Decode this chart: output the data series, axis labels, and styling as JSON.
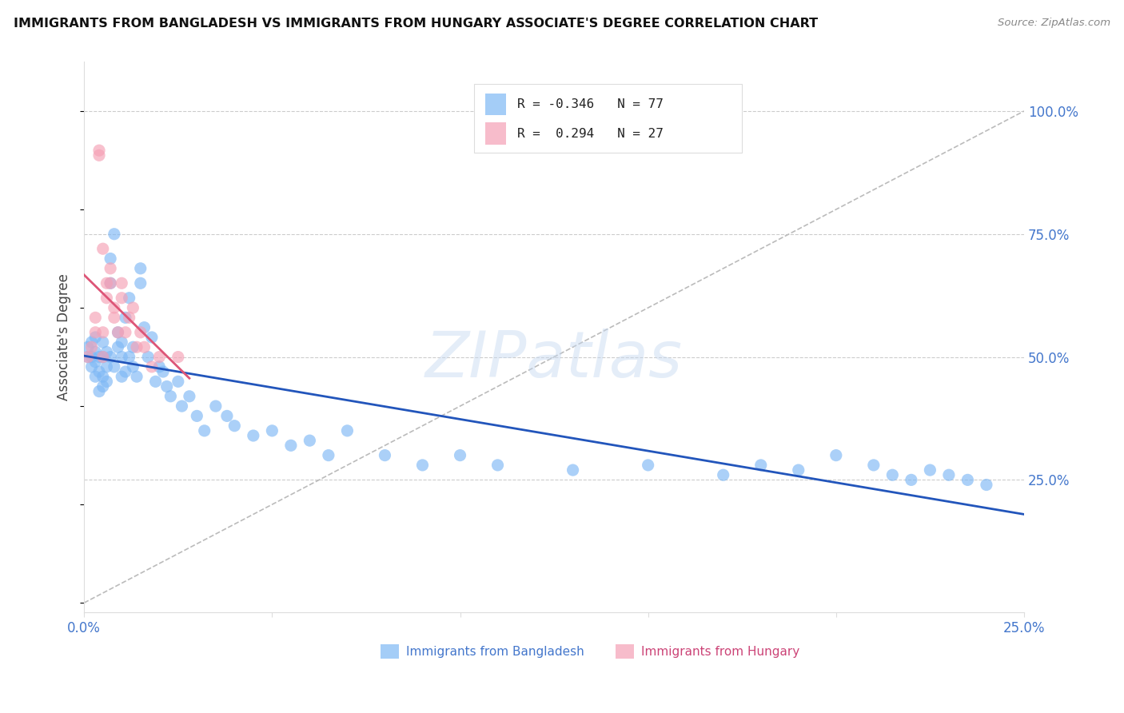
{
  "title": "IMMIGRANTS FROM BANGLADESH VS IMMIGRANTS FROM HUNGARY ASSOCIATE'S DEGREE CORRELATION CHART",
  "source": "Source: ZipAtlas.com",
  "ylabel_left": "Associate's Degree",
  "xlim": [
    0.0,
    0.25
  ],
  "ylim": [
    -0.02,
    1.1
  ],
  "background_color": "#ffffff",
  "bangladesh_color": "#7EB8F5",
  "hungary_color": "#F5A0B5",
  "blue_line_color": "#2255BB",
  "pink_line_color": "#DD5577",
  "diagonal_color": "#bbbbbb",
  "grid_color": "#cccccc",
  "legend_R1": "-0.346",
  "legend_N1": "77",
  "legend_R2": "0.294",
  "legend_N2": "27",
  "legend_label1": "Immigrants from Bangladesh",
  "legend_label2": "Immigrants from Hungary",
  "watermark": "ZIPatlas",
  "bang_x": [
    0.001,
    0.001,
    0.002,
    0.002,
    0.002,
    0.003,
    0.003,
    0.003,
    0.003,
    0.004,
    0.004,
    0.004,
    0.005,
    0.005,
    0.005,
    0.005,
    0.006,
    0.006,
    0.006,
    0.007,
    0.007,
    0.007,
    0.008,
    0.008,
    0.009,
    0.009,
    0.01,
    0.01,
    0.01,
    0.011,
    0.011,
    0.012,
    0.012,
    0.013,
    0.013,
    0.014,
    0.015,
    0.015,
    0.016,
    0.017,
    0.018,
    0.019,
    0.02,
    0.021,
    0.022,
    0.023,
    0.025,
    0.026,
    0.028,
    0.03,
    0.032,
    0.035,
    0.038,
    0.04,
    0.045,
    0.05,
    0.055,
    0.06,
    0.065,
    0.07,
    0.08,
    0.09,
    0.1,
    0.11,
    0.13,
    0.15,
    0.17,
    0.18,
    0.19,
    0.2,
    0.21,
    0.215,
    0.22,
    0.225,
    0.23,
    0.235,
    0.24
  ],
  "bang_y": [
    0.5,
    0.52,
    0.48,
    0.5,
    0.53,
    0.46,
    0.49,
    0.51,
    0.54,
    0.43,
    0.47,
    0.5,
    0.44,
    0.46,
    0.5,
    0.53,
    0.48,
    0.51,
    0.45,
    0.5,
    0.65,
    0.7,
    0.48,
    0.75,
    0.52,
    0.55,
    0.46,
    0.5,
    0.53,
    0.47,
    0.58,
    0.5,
    0.62,
    0.48,
    0.52,
    0.46,
    0.65,
    0.68,
    0.56,
    0.5,
    0.54,
    0.45,
    0.48,
    0.47,
    0.44,
    0.42,
    0.45,
    0.4,
    0.42,
    0.38,
    0.35,
    0.4,
    0.38,
    0.36,
    0.34,
    0.35,
    0.32,
    0.33,
    0.3,
    0.35,
    0.3,
    0.28,
    0.3,
    0.28,
    0.27,
    0.28,
    0.26,
    0.28,
    0.27,
    0.3,
    0.28,
    0.26,
    0.25,
    0.27,
    0.26,
    0.25,
    0.24
  ],
  "hung_x": [
    0.001,
    0.002,
    0.003,
    0.003,
    0.004,
    0.004,
    0.005,
    0.005,
    0.005,
    0.006,
    0.006,
    0.007,
    0.007,
    0.008,
    0.008,
    0.009,
    0.01,
    0.01,
    0.011,
    0.012,
    0.013,
    0.014,
    0.015,
    0.016,
    0.018,
    0.02,
    0.025
  ],
  "hung_y": [
    0.5,
    0.52,
    0.55,
    0.58,
    0.92,
    0.91,
    0.5,
    0.55,
    0.72,
    0.62,
    0.65,
    0.68,
    0.65,
    0.6,
    0.58,
    0.55,
    0.62,
    0.65,
    0.55,
    0.58,
    0.6,
    0.52,
    0.55,
    0.52,
    0.48,
    0.5,
    0.5
  ]
}
